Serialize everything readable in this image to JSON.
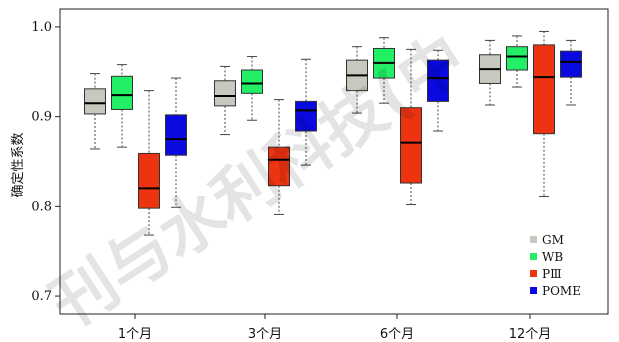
{
  "chart_data": {
    "type": "boxplot",
    "ylabel": "确定性系数",
    "ylim": [
      0.68,
      1.02
    ],
    "yticks": [
      "0.7",
      "0.8",
      "0.9",
      "1.0"
    ],
    "ytick_values": [
      0.7,
      0.8,
      0.9,
      1.0
    ],
    "categories": [
      "1个月",
      "3个月",
      "6个月",
      "12个月"
    ],
    "legend_position": "bottom-right",
    "watermark": "刊与水利科技(中",
    "series": [
      {
        "name": "GM",
        "color": "#c8c8be",
        "boxes": [
          {
            "min": 0.864,
            "q1": 0.903,
            "median": 0.915,
            "q3": 0.931,
            "max": 0.948
          },
          {
            "min": 0.88,
            "q1": 0.912,
            "median": 0.923,
            "q3": 0.94,
            "max": 0.956
          },
          {
            "min": 0.904,
            "q1": 0.929,
            "median": 0.946,
            "q3": 0.963,
            "max": 0.978
          },
          {
            "min": 0.913,
            "q1": 0.937,
            "median": 0.953,
            "q3": 0.969,
            "max": 0.985
          }
        ]
      },
      {
        "name": "WB",
        "color": "#22ee66",
        "boxes": [
          {
            "min": 0.866,
            "q1": 0.908,
            "median": 0.924,
            "q3": 0.945,
            "max": 0.958
          },
          {
            "min": 0.896,
            "q1": 0.926,
            "median": 0.937,
            "q3": 0.952,
            "max": 0.967
          },
          {
            "min": 0.915,
            "q1": 0.943,
            "median": 0.96,
            "q3": 0.976,
            "max": 0.988
          },
          {
            "min": 0.933,
            "q1": 0.952,
            "median": 0.967,
            "q3": 0.978,
            "max": 0.99
          }
        ]
      },
      {
        "name": "PⅢ",
        "color": "#ee3311",
        "boxes": [
          {
            "min": 0.768,
            "q1": 0.798,
            "median": 0.82,
            "q3": 0.859,
            "max": 0.929
          },
          {
            "min": 0.791,
            "q1": 0.823,
            "median": 0.852,
            "q3": 0.866,
            "max": 0.919
          },
          {
            "min": 0.802,
            "q1": 0.826,
            "median": 0.871,
            "q3": 0.91,
            "max": 0.975
          },
          {
            "min": 0.811,
            "q1": 0.881,
            "median": 0.944,
            "q3": 0.98,
            "max": 0.995
          }
        ]
      },
      {
        "name": "POME",
        "color": "#0a0ae0",
        "boxes": [
          {
            "min": 0.799,
            "q1": 0.857,
            "median": 0.875,
            "q3": 0.902,
            "max": 0.943
          },
          {
            "min": 0.846,
            "q1": 0.884,
            "median": 0.907,
            "q3": 0.917,
            "max": 0.964
          },
          {
            "min": 0.884,
            "q1": 0.917,
            "median": 0.943,
            "q3": 0.963,
            "max": 0.974
          },
          {
            "min": 0.913,
            "q1": 0.944,
            "median": 0.961,
            "q3": 0.973,
            "max": 0.985
          }
        ]
      }
    ]
  }
}
